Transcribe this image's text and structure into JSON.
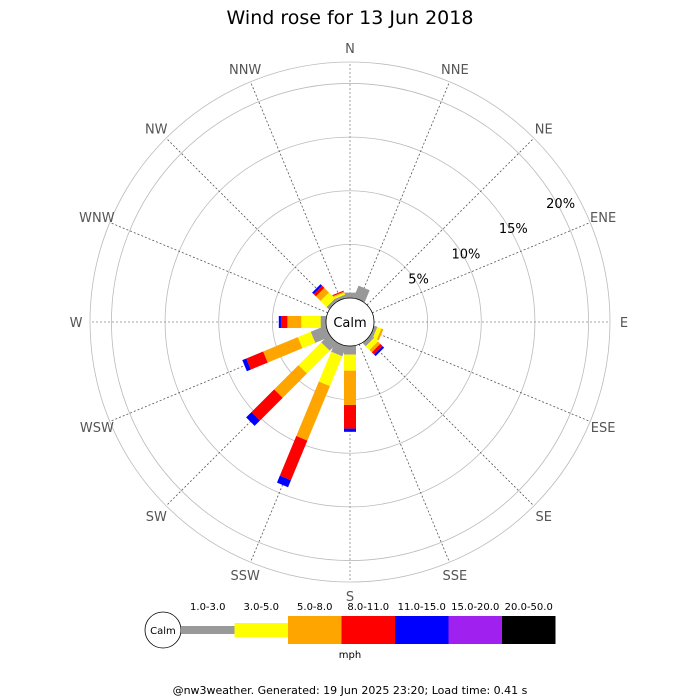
{
  "chart_data": {
    "type": "wind-rose",
    "title": "Wind rose for 13 Jun 2018",
    "directions": [
      "N",
      "NNE",
      "NE",
      "ENE",
      "E",
      "ESE",
      "SE",
      "SSE",
      "S",
      "SSW",
      "SW",
      "WSW",
      "W",
      "WNW",
      "NW",
      "NNW"
    ],
    "rings": [
      {
        "value": 5,
        "label": "5%"
      },
      {
        "value": 10,
        "label": "10%"
      },
      {
        "value": 15,
        "label": "15%"
      },
      {
        "value": 20,
        "label": "20%"
      }
    ],
    "rmax": 22,
    "calm_label": "Calm",
    "unit": "mph",
    "bins": [
      {
        "label": "1.0-3.0",
        "color": "#999999"
      },
      {
        "label": "3.0-5.0",
        "color": "#ffff00"
      },
      {
        "label": "5.0-8.0",
        "color": "#ffa500"
      },
      {
        "label": "8.0-11.0",
        "color": "#ff0000"
      },
      {
        "label": "11.0-15.0",
        "color": "#0000ff"
      },
      {
        "label": "15.0-20.0",
        "color": "#a020f0"
      },
      {
        "label": "20.0-50.0",
        "color": "#000000"
      }
    ],
    "frequencies": {
      "N": [
        0.5,
        0,
        0,
        0,
        0,
        0,
        0
      ],
      "NNE": [
        1.2,
        0,
        0,
        0,
        0,
        0,
        0
      ],
      "NE": [
        0,
        0,
        0,
        0,
        0,
        0,
        0
      ],
      "ENE": [
        0,
        0,
        0,
        0,
        0,
        0,
        0
      ],
      "E": [
        0,
        0,
        0,
        0,
        0,
        0,
        0
      ],
      "ESE": [
        0.3,
        0.4,
        0.2,
        0,
        0,
        0,
        0
      ],
      "SE": [
        0.4,
        0.5,
        0.3,
        0.3,
        0.2,
        0,
        0
      ],
      "SSE": [
        0,
        0,
        0,
        0,
        0,
        0,
        0
      ],
      "S": [
        0.8,
        1.5,
        3.2,
        2.2,
        0.3,
        0,
        0
      ],
      "SSW": [
        1.0,
        3.0,
        5.5,
        4.0,
        0.7,
        0,
        0
      ],
      "SW": [
        1.0,
        3.0,
        3.2,
        3.0,
        0.7,
        0,
        0
      ],
      "WSW": [
        1.5,
        1.3,
        3.5,
        1.7,
        0.4,
        0,
        0
      ],
      "W": [
        0.5,
        1.8,
        1.3,
        0.6,
        0.2,
        0,
        0
      ],
      "WNW": [
        0,
        0,
        0,
        0,
        0,
        0,
        0
      ],
      "NW": [
        0.3,
        0.8,
        0.6,
        0.3,
        0.2,
        0,
        0
      ],
      "NNW": [
        0.3,
        0.2,
        0.1,
        0.1,
        0,
        0,
        0
      ]
    }
  },
  "footer": "@nw3weather. Generated: 19 Jun 2025 23:20; Load time: 0.41 s"
}
